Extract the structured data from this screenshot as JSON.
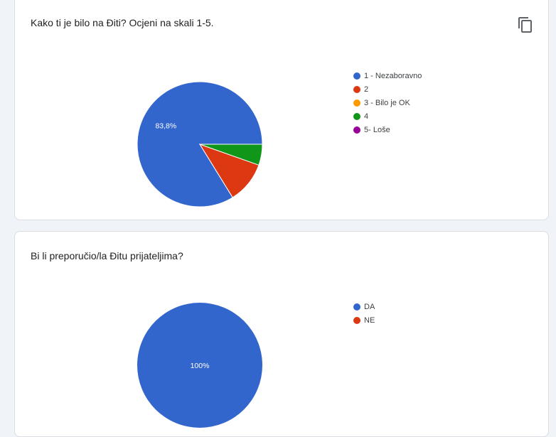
{
  "chart_data": [
    {
      "type": "pie",
      "title": "Kako ti je bilo na Điti? Ocjeni na skali 1-5.",
      "categories": [
        "1 - Nezaboravno",
        "2",
        "3 - Bilo je OK",
        "4",
        "5- Loše"
      ],
      "values": [
        83.8,
        10.8,
        0,
        5.4,
        0
      ],
      "colors": [
        "#3366cc",
        "#dc3912",
        "#ff9900",
        "#109618",
        "#990099"
      ],
      "slice_labels": [
        "83,8%",
        "",
        "",
        "",
        ""
      ],
      "legend_position": "right"
    },
    {
      "type": "pie",
      "title": "Bi li preporučio/la Đitu prijateljima?",
      "categories": [
        "DA",
        "NE"
      ],
      "values": [
        100,
        0
      ],
      "colors": [
        "#3366cc",
        "#dc3912"
      ],
      "slice_labels": [
        "100%",
        ""
      ],
      "legend_position": "right"
    }
  ],
  "toolbar": {
    "copy_icon": "copy-icon"
  }
}
